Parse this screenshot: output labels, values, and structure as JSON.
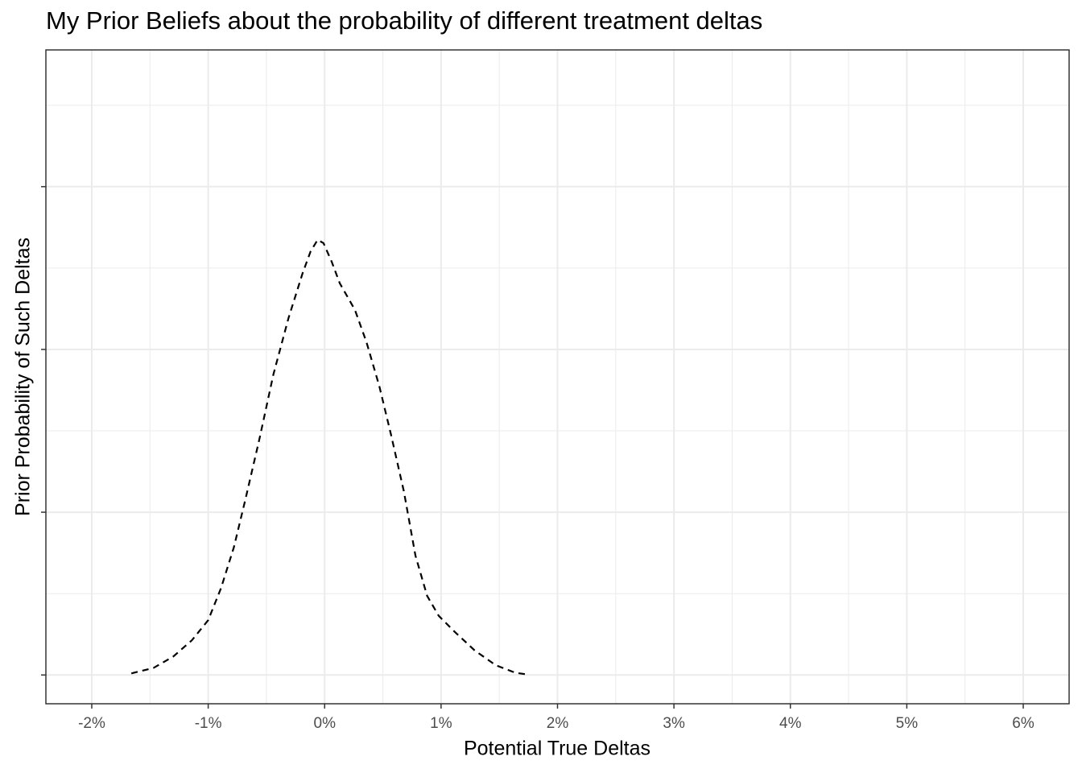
{
  "chart_data": {
    "type": "line",
    "title": "My Prior Beliefs about the probability of different treatment deltas",
    "xlabel": "Potential True Deltas",
    "ylabel": "Prior Probability of Such Deltas",
    "x": [
      -1.66,
      -1.47,
      -1.3,
      -1.14,
      -1.0,
      -0.89,
      -0.78,
      -0.68,
      -0.56,
      -0.44,
      -0.31,
      -0.19,
      -0.12,
      -0.06,
      -0.01,
      0.06,
      0.13,
      0.26,
      0.36,
      0.47,
      0.57,
      0.68,
      0.78,
      0.88,
      0.98,
      1.12,
      1.29,
      1.47,
      1.64,
      1.74
    ],
    "series": [
      {
        "color": "#000000",
        "dash": true,
        "values": [
          0.003,
          0.013,
          0.034,
          0.064,
          0.101,
          0.16,
          0.235,
          0.324,
          0.435,
          0.554,
          0.658,
          0.74,
          0.781,
          0.802,
          0.796,
          0.762,
          0.722,
          0.673,
          0.613,
          0.532,
          0.443,
          0.339,
          0.22,
          0.146,
          0.109,
          0.079,
          0.045,
          0.018,
          0.004,
          0.001
        ]
      }
    ],
    "xlim": [
      -2.394,
      6.394
    ],
    "ylim": [
      -0.053,
      1.152
    ],
    "xticks": [
      {
        "value": -2,
        "label": "-2%"
      },
      {
        "value": -1,
        "label": "-1%"
      },
      {
        "value": 0,
        "label": "0%"
      },
      {
        "value": 1,
        "label": "1%"
      },
      {
        "value": 2,
        "label": "2%"
      },
      {
        "value": 3,
        "label": "3%"
      },
      {
        "value": 4,
        "label": "4%"
      },
      {
        "value": 5,
        "label": "5%"
      },
      {
        "value": 6,
        "label": "6%"
      }
    ],
    "xminor": [
      -1.5,
      -0.5,
      0.5,
      1.5,
      2.5,
      3.5,
      4.5,
      5.5
    ],
    "yticks": [
      0,
      0.3,
      0.6,
      0.9
    ],
    "yminor": [
      0.15,
      0.45,
      0.75,
      1.05
    ],
    "grid": true
  }
}
